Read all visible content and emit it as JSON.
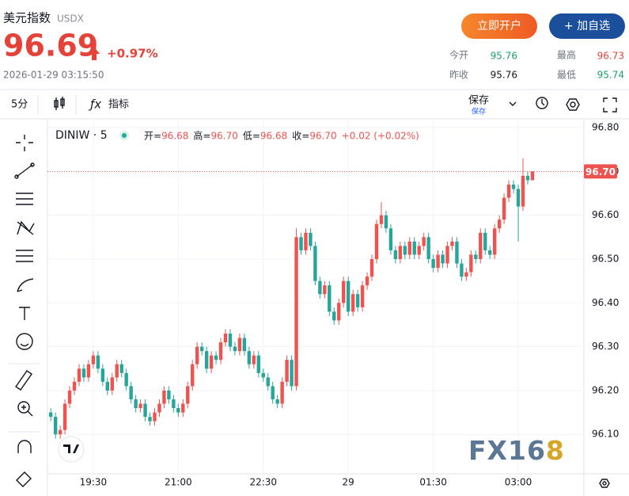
{
  "header": {
    "title": "美元指数",
    "symbol": "USDX",
    "price": "96.69",
    "change": "+0.97%",
    "time": "2026-01-29 03:15:50",
    "buttons": [
      "立即开户",
      "+ 加自选"
    ],
    "stats": [
      {
        "label": "今开",
        "value": "95.76"
      },
      {
        "label": "最高",
        "value": "96.73"
      },
      {
        "label": "昨收",
        "value": "95.76"
      },
      {
        "label": "最低",
        "value": "95.74"
      }
    ]
  },
  "toolbar": {
    "interval": "5分",
    "indicators": "指标",
    "save": "保存",
    "save_sub": "保存"
  },
  "chart_data": {
    "type": "candlestick",
    "symbol": "DINIW · 5",
    "legend": [
      {
        "label": "开=",
        "value": "96.68"
      },
      {
        "label": "高=",
        "value": "96.70"
      },
      {
        "label": "低=",
        "value": "96.68"
      },
      {
        "label": "收=",
        "value": "96.70"
      },
      {
        "label": "",
        "value": "+0.02 (+0.02%)"
      }
    ],
    "up_color": "#ef5350",
    "down_color": "#26a69a",
    "open": [
      96.15,
      96.14,
      96.1,
      96.11,
      96.17,
      96.2,
      96.22,
      96.25,
      96.23,
      96.26,
      96.28,
      96.25,
      96.22,
      96.2,
      96.23,
      96.26,
      96.24,
      96.21,
      96.18,
      96.16,
      96.17,
      96.14,
      96.13,
      96.15,
      96.17,
      96.2,
      96.18,
      96.16,
      96.15,
      96.17,
      96.21,
      96.26,
      96.3,
      96.29,
      96.25,
      96.28,
      96.27,
      96.31,
      96.33,
      96.3,
      96.29,
      96.32,
      96.29,
      96.26,
      96.28,
      96.24,
      96.23,
      96.21,
      96.18,
      96.17,
      96.22,
      96.27,
      96.21,
      96.55,
      96.52,
      96.56,
      96.53,
      96.45,
      96.42,
      96.44,
      96.38,
      96.36,
      96.4,
      96.45,
      96.38,
      96.42,
      96.39,
      96.44,
      96.46,
      96.5,
      96.58,
      96.6,
      96.57,
      96.52,
      96.5,
      96.53,
      96.51,
      96.54,
      96.51,
      96.53,
      96.55,
      96.5,
      96.48,
      96.51,
      96.49,
      96.53,
      96.54,
      96.49,
      96.46,
      96.47,
      96.51,
      96.5,
      96.56,
      96.52,
      96.51,
      96.57,
      96.59,
      96.64,
      96.67,
      96.66,
      96.62,
      96.69,
      96.68
    ],
    "high": [
      96.16,
      96.15,
      96.12,
      96.18,
      96.21,
      96.23,
      96.26,
      96.26,
      96.27,
      96.29,
      96.29,
      96.26,
      96.23,
      96.24,
      96.27,
      96.27,
      96.25,
      96.22,
      96.19,
      96.18,
      96.18,
      96.15,
      96.16,
      96.18,
      96.21,
      96.21,
      96.19,
      96.17,
      96.18,
      96.22,
      96.27,
      96.31,
      96.31,
      96.3,
      96.29,
      96.29,
      96.32,
      96.34,
      96.34,
      96.31,
      96.33,
      96.33,
      96.3,
      96.29,
      96.29,
      96.25,
      96.24,
      96.22,
      96.19,
      96.23,
      96.28,
      96.28,
      96.57,
      96.56,
      96.57,
      96.57,
      96.54,
      96.46,
      96.45,
      96.45,
      96.39,
      96.41,
      96.46,
      96.46,
      96.43,
      96.43,
      96.45,
      96.47,
      96.51,
      96.59,
      96.63,
      96.61,
      96.58,
      96.53,
      96.54,
      96.54,
      96.55,
      96.55,
      96.54,
      96.56,
      96.56,
      96.51,
      96.52,
      96.52,
      96.54,
      96.55,
      96.55,
      96.5,
      96.48,
      96.52,
      96.52,
      96.57,
      96.57,
      96.53,
      96.58,
      96.6,
      96.65,
      96.68,
      96.68,
      96.67,
      96.73,
      96.7,
      96.7
    ],
    "low": [
      96.13,
      96.09,
      96.09,
      96.1,
      96.16,
      96.19,
      96.21,
      96.22,
      96.22,
      96.25,
      96.24,
      96.21,
      96.19,
      96.19,
      96.22,
      96.23,
      96.2,
      96.17,
      96.15,
      96.15,
      96.13,
      96.12,
      96.12,
      96.14,
      96.16,
      96.17,
      96.15,
      96.14,
      96.14,
      96.16,
      96.2,
      96.25,
      96.28,
      96.24,
      96.24,
      96.26,
      96.26,
      96.3,
      96.29,
      96.28,
      96.28,
      96.28,
      96.25,
      96.25,
      96.23,
      96.22,
      96.2,
      96.17,
      96.16,
      96.16,
      96.21,
      96.2,
      96.2,
      96.51,
      96.51,
      96.52,
      96.44,
      96.41,
      96.41,
      96.37,
      96.35,
      96.35,
      96.39,
      96.37,
      96.37,
      96.38,
      96.38,
      96.43,
      96.45,
      96.49,
      96.57,
      96.56,
      96.51,
      96.49,
      96.49,
      96.5,
      96.5,
      96.5,
      96.5,
      96.52,
      96.49,
      96.47,
      96.47,
      96.48,
      96.48,
      96.52,
      96.48,
      96.45,
      96.45,
      96.46,
      96.49,
      96.49,
      96.51,
      96.5,
      96.5,
      96.56,
      96.58,
      96.63,
      96.65,
      96.54,
      96.61,
      96.67,
      96.68
    ],
    "close": [
      96.14,
      96.1,
      96.11,
      96.17,
      96.2,
      96.22,
      96.25,
      96.23,
      96.26,
      96.28,
      96.25,
      96.22,
      96.2,
      96.23,
      96.26,
      96.24,
      96.21,
      96.18,
      96.16,
      96.17,
      96.14,
      96.13,
      96.15,
      96.17,
      96.2,
      96.18,
      96.16,
      96.15,
      96.17,
      96.21,
      96.26,
      96.3,
      96.29,
      96.25,
      96.28,
      96.27,
      96.31,
      96.33,
      96.3,
      96.29,
      96.32,
      96.29,
      96.26,
      96.28,
      96.24,
      96.23,
      96.21,
      96.18,
      96.17,
      96.22,
      96.27,
      96.21,
      96.55,
      96.52,
      96.56,
      96.53,
      96.45,
      96.42,
      96.44,
      96.38,
      96.36,
      96.4,
      96.45,
      96.38,
      96.42,
      96.39,
      96.44,
      96.46,
      96.5,
      96.58,
      96.6,
      96.57,
      96.52,
      96.5,
      96.53,
      96.51,
      96.54,
      96.51,
      96.53,
      96.55,
      96.5,
      96.48,
      96.51,
      96.49,
      96.53,
      96.54,
      96.49,
      96.46,
      96.47,
      96.51,
      96.5,
      96.56,
      96.52,
      96.51,
      96.57,
      96.59,
      96.64,
      96.67,
      96.66,
      96.62,
      96.69,
      96.68,
      96.7
    ],
    "price_line": {
      "value": 96.7,
      "label": "96.70"
    },
    "xlim": [
      -0.7,
      112.9
    ],
    "xticks": [
      {
        "value": 9,
        "label": "19:30"
      },
      {
        "value": 27,
        "label": "21:00"
      },
      {
        "value": 45,
        "label": "22:30"
      },
      {
        "value": 63,
        "label": "29"
      },
      {
        "value": 81,
        "label": "01:30"
      },
      {
        "value": 99,
        "label": "03:00"
      }
    ],
    "ylim": [
      96.01,
      96.82
    ],
    "yticks": [
      {
        "value": 96.1,
        "label": "96.10"
      },
      {
        "value": 96.2,
        "label": "96.20"
      },
      {
        "value": 96.3,
        "label": "96.30"
      },
      {
        "value": 96.4,
        "label": "96.40"
      },
      {
        "value": 96.5,
        "label": "96.50"
      },
      {
        "value": 96.6,
        "label": "96.60"
      },
      {
        "value": 96.7,
        "label": "96.70"
      },
      {
        "value": 96.8,
        "label": "96.80"
      }
    ],
    "grid": true,
    "watermark": {
      "text": "FX16",
      "accent": "8"
    }
  }
}
